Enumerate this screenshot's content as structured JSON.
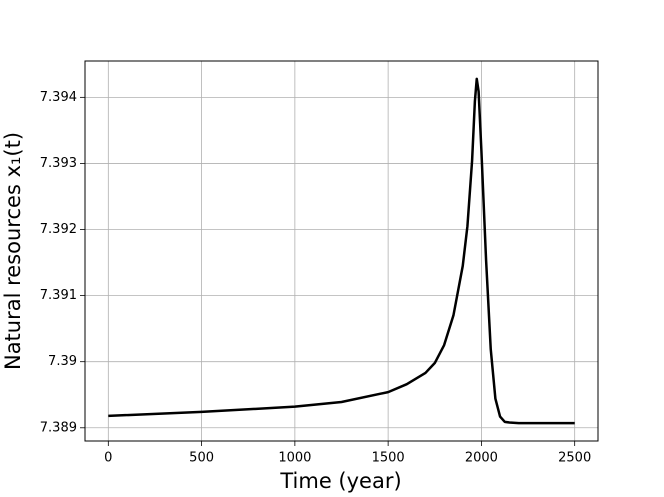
{
  "chart_data": {
    "type": "line",
    "x_label": "Time (year)",
    "y_label": "Natural resources x₁(t)",
    "x": [
      0,
      500,
      1000,
      1250,
      1500,
      1600,
      1700,
      1750,
      1800,
      1850,
      1900,
      1925,
      1950,
      1965,
      1975,
      1985,
      2000,
      2025,
      2050,
      2075,
      2100,
      2125,
      2150,
      2200,
      2500
    ],
    "series": [
      {
        "color": "#000000",
        "values": [
          7.38918,
          7.38924,
          7.38932,
          7.38939,
          7.38954,
          7.38966,
          7.38983,
          7.38998,
          7.39025,
          7.3907,
          7.39145,
          7.39205,
          7.39304,
          7.39394,
          7.39428,
          7.39409,
          7.39319,
          7.39154,
          7.39019,
          7.38944,
          7.38917,
          7.38909,
          7.38908,
          7.38907,
          7.38907
        ]
      }
    ],
    "xlim": [
      -125,
      2625
    ],
    "ylim": [
      7.3888,
      7.39455
    ],
    "xticks": [
      0,
      500,
      1000,
      1500,
      2000,
      2500
    ],
    "yticks": [
      7.389,
      7.39,
      7.391,
      7.392,
      7.393,
      7.394
    ],
    "grid": true
  }
}
